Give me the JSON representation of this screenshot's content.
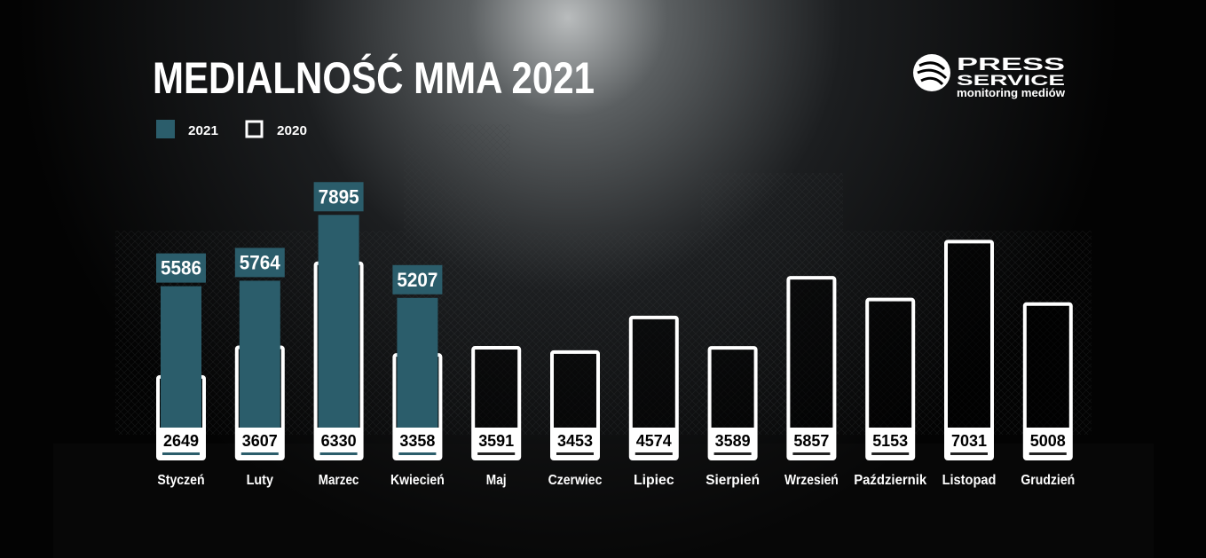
{
  "chart_data": {
    "type": "bar",
    "title": "MEDIALNOŚĆ MMA 2021",
    "categories": [
      "Styczeń",
      "Luty",
      "Marzec",
      "Kwiecień",
      "Maj",
      "Czerwiec",
      "Lipiec",
      "Sierpień",
      "Wrzesień",
      "Październik",
      "Listopad",
      "Grudzień"
    ],
    "series": [
      {
        "name": "2021",
        "color": "#2b5d6b",
        "values": [
          5586,
          5764,
          7895,
          5207,
          null,
          null,
          null,
          null,
          null,
          null,
          null,
          null
        ]
      },
      {
        "name": "2020",
        "color": "#ffffff",
        "values": [
          2649,
          3607,
          6330,
          3358,
          3591,
          3453,
          4574,
          3589,
          5857,
          5153,
          7031,
          5008
        ]
      }
    ]
  },
  "logo": {
    "line1": "PRESS",
    "line2": "SERVICE",
    "tagline": "monitoring mediów"
  }
}
